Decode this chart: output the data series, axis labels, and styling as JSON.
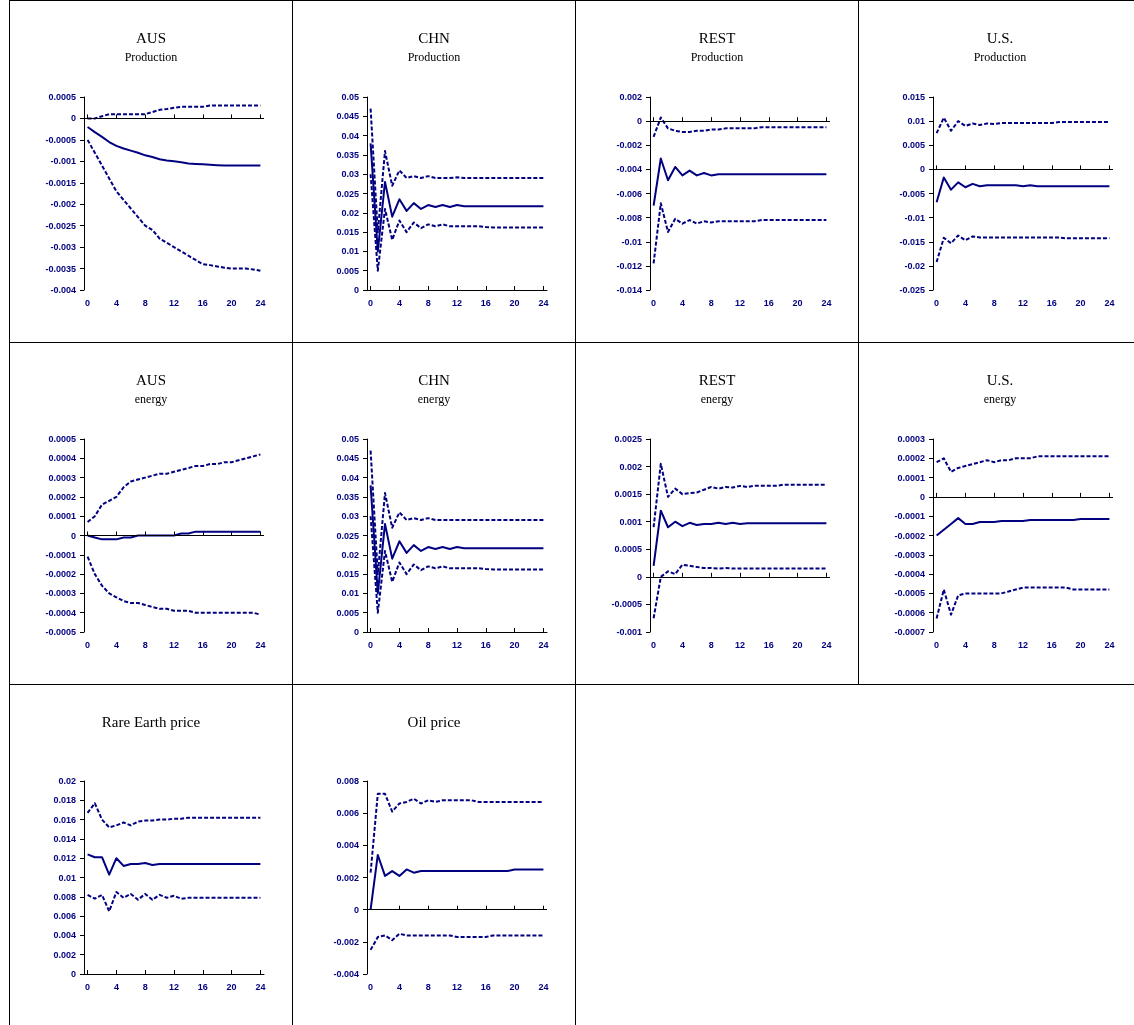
{
  "chart_data": [
    {
      "type": "line",
      "title": "AUS",
      "subtitle": "Production",
      "x": [
        0,
        1,
        2,
        3,
        4,
        5,
        6,
        7,
        8,
        9,
        10,
        11,
        12,
        13,
        14,
        15,
        16,
        17,
        18,
        19,
        20,
        21,
        22,
        23,
        24
      ],
      "xlim": [
        -0.5,
        24.5
      ],
      "xticks": [
        0,
        4,
        8,
        12,
        16,
        20,
        24
      ],
      "ylim": [
        -0.004,
        0.0005
      ],
      "ref_lines": [
        {
          "axis": "y",
          "value": 0
        }
      ],
      "yticks": [
        -0.004,
        -0.0035,
        -0.003,
        -0.0025,
        -0.002,
        -0.0015,
        -0.001,
        -0.0005,
        0,
        0.0005
      ],
      "marker": "none",
      "grid": false,
      "series": [
        {
          "color": "#000080",
          "line_style": "dashed",
          "values": [
            0,
            0,
            5e-05,
            0.0001,
            0.0001,
            0.0001,
            0.0001,
            0.0001,
            0.0001,
            0.00015,
            0.0002,
            0.00022,
            0.00025,
            0.00027,
            0.00027,
            0.00027,
            0.00027,
            0.0003,
            0.0003,
            0.0003,
            0.0003,
            0.0003,
            0.0003,
            0.0003,
            0.0003
          ]
        },
        {
          "color": "#000080",
          "line_style": "solid",
          "values": [
            -0.0002,
            -0.00032,
            -0.00043,
            -0.00055,
            -0.00064,
            -0.0007,
            -0.00075,
            -0.0008,
            -0.00086,
            -0.0009,
            -0.00095,
            -0.00098,
            -0.001,
            -0.00102,
            -0.00105,
            -0.00106,
            -0.00107,
            -0.00108,
            -0.00109,
            -0.0011,
            -0.0011,
            -0.0011,
            -0.0011,
            -0.0011,
            -0.0011
          ]
        },
        {
          "color": "#000080",
          "line_style": "dashed",
          "values": [
            -0.0005,
            -0.0008,
            -0.0011,
            -0.0014,
            -0.0017,
            -0.0019,
            -0.0021,
            -0.0023,
            -0.0025,
            -0.0026,
            -0.0028,
            -0.0029,
            -0.003,
            -0.0031,
            -0.0032,
            -0.0033,
            -0.0034,
            -0.00342,
            -0.00345,
            -0.00348,
            -0.0035,
            -0.0035,
            -0.0035,
            -0.00352,
            -0.00355
          ]
        }
      ]
    },
    {
      "type": "line",
      "title": "CHN",
      "subtitle": "Production",
      "x": [
        0,
        1,
        2,
        3,
        4,
        5,
        6,
        7,
        8,
        9,
        10,
        11,
        12,
        13,
        14,
        15,
        16,
        17,
        18,
        19,
        20,
        21,
        22,
        23,
        24
      ],
      "xlim": [
        -0.5,
        24.5
      ],
      "xticks": [
        0,
        4,
        8,
        12,
        16,
        20,
        24
      ],
      "ylim": [
        0,
        0.05
      ],
      "yticks": [
        0,
        0.005,
        0.01,
        0.015,
        0.02,
        0.025,
        0.03,
        0.035,
        0.04,
        0.045,
        0.05
      ],
      "marker": "none",
      "grid": false,
      "series": [
        {
          "color": "#000080",
          "line_style": "dashed",
          "values": [
            0.047,
            0.015,
            0.036,
            0.027,
            0.031,
            0.029,
            0.0295,
            0.029,
            0.0295,
            0.029,
            0.029,
            0.029,
            0.0292,
            0.029,
            0.029,
            0.029,
            0.029,
            0.029,
            0.029,
            0.029,
            0.029,
            0.029,
            0.029,
            0.029,
            0.029
          ]
        },
        {
          "color": "#000080",
          "line_style": "solid",
          "values": [
            0.038,
            0.01,
            0.028,
            0.019,
            0.0235,
            0.0205,
            0.0225,
            0.021,
            0.022,
            0.0215,
            0.022,
            0.0215,
            0.022,
            0.0217,
            0.0217,
            0.0217,
            0.0217,
            0.0217,
            0.0217,
            0.0217,
            0.0217,
            0.0217,
            0.0217,
            0.0217,
            0.0217
          ]
        },
        {
          "color": "#000080",
          "line_style": "dashed",
          "values": [
            0.03,
            0.005,
            0.021,
            0.013,
            0.018,
            0.015,
            0.0175,
            0.016,
            0.017,
            0.0165,
            0.017,
            0.0165,
            0.0165,
            0.0165,
            0.0165,
            0.0165,
            0.0163,
            0.0162,
            0.0162,
            0.0162,
            0.0162,
            0.0162,
            0.0162,
            0.0162,
            0.0162
          ]
        }
      ]
    },
    {
      "type": "line",
      "title": "REST",
      "subtitle": "Production",
      "x": [
        0,
        1,
        2,
        3,
        4,
        5,
        6,
        7,
        8,
        9,
        10,
        11,
        12,
        13,
        14,
        15,
        16,
        17,
        18,
        19,
        20,
        21,
        22,
        23,
        24
      ],
      "xlim": [
        -0.5,
        24.5
      ],
      "xticks": [
        0,
        4,
        8,
        12,
        16,
        20,
        24
      ],
      "ylim": [
        -0.014,
        0.002
      ],
      "ref_lines": [
        {
          "axis": "y",
          "value": 0
        }
      ],
      "yticks": [
        -0.014,
        -0.012,
        -0.01,
        -0.008,
        -0.006,
        -0.004,
        -0.002,
        0,
        0.002
      ],
      "marker": "none",
      "grid": false,
      "series": [
        {
          "color": "#000080",
          "line_style": "dashed",
          "values": [
            -0.0013,
            0.0003,
            -0.0006,
            -0.0008,
            -0.0009,
            -0.0009,
            -0.0008,
            -0.0008,
            -0.0007,
            -0.0007,
            -0.0006,
            -0.0006,
            -0.0006,
            -0.0006,
            -0.0006,
            -0.0005,
            -0.0005,
            -0.0005,
            -0.0005,
            -0.0005,
            -0.0005,
            -0.0005,
            -0.0005,
            -0.0005,
            -0.0005
          ]
        },
        {
          "color": "#000080",
          "line_style": "solid",
          "values": [
            -0.007,
            -0.0031,
            -0.0049,
            -0.0038,
            -0.0045,
            -0.0041,
            -0.0045,
            -0.0043,
            -0.0045,
            -0.0044,
            -0.0044,
            -0.0044,
            -0.0044,
            -0.0044,
            -0.0044,
            -0.0044,
            -0.0044,
            -0.0044,
            -0.0044,
            -0.0044,
            -0.0044,
            -0.0044,
            -0.0044,
            -0.0044,
            -0.0044
          ]
        },
        {
          "color": "#000080",
          "line_style": "dashed",
          "values": [
            -0.0118,
            -0.0068,
            -0.0092,
            -0.0081,
            -0.0085,
            -0.0082,
            -0.0085,
            -0.0083,
            -0.0084,
            -0.0083,
            -0.0083,
            -0.0083,
            -0.0083,
            -0.0083,
            -0.0083,
            -0.0082,
            -0.0082,
            -0.0082,
            -0.0082,
            -0.0082,
            -0.0082,
            -0.0082,
            -0.0082,
            -0.0082,
            -0.0082
          ]
        }
      ]
    },
    {
      "type": "line",
      "title": "U.S.",
      "subtitle": "Production",
      "x": [
        0,
        1,
        2,
        3,
        4,
        5,
        6,
        7,
        8,
        9,
        10,
        11,
        12,
        13,
        14,
        15,
        16,
        17,
        18,
        19,
        20,
        21,
        22,
        23,
        24
      ],
      "xlim": [
        -0.5,
        24.5
      ],
      "xticks": [
        0,
        4,
        8,
        12,
        16,
        20,
        24
      ],
      "ylim": [
        -0.025,
        0.015
      ],
      "ref_lines": [
        {
          "axis": "y",
          "value": 0
        }
      ],
      "yticks": [
        -0.025,
        -0.02,
        -0.015,
        -0.01,
        -0.005,
        0,
        0.005,
        0.01,
        0.015
      ],
      "marker": "none",
      "grid": false,
      "series": [
        {
          "color": "#000080",
          "line_style": "dashed",
          "values": [
            0.0075,
            0.0107,
            0.008,
            0.01,
            0.009,
            0.0095,
            0.0092,
            0.0095,
            0.0094,
            0.0096,
            0.0096,
            0.0096,
            0.0096,
            0.0096,
            0.0096,
            0.0096,
            0.0096,
            0.0098,
            0.0098,
            0.0098,
            0.0098,
            0.0098,
            0.0098,
            0.0098,
            0.0098
          ]
        },
        {
          "color": "#000080",
          "line_style": "solid",
          "values": [
            -0.0068,
            -0.0017,
            -0.0042,
            -0.0027,
            -0.0037,
            -0.003,
            -0.0035,
            -0.0033,
            -0.0033,
            -0.0033,
            -0.0033,
            -0.0033,
            -0.0035,
            -0.0033,
            -0.0035,
            -0.0035,
            -0.0035,
            -0.0035,
            -0.0035,
            -0.0035,
            -0.0035,
            -0.0035,
            -0.0035,
            -0.0035,
            -0.0035
          ]
        },
        {
          "color": "#000080",
          "line_style": "dashed",
          "values": [
            -0.0192,
            -0.0142,
            -0.0153,
            -0.0137,
            -0.0147,
            -0.0139,
            -0.0141,
            -0.0141,
            -0.0141,
            -0.0141,
            -0.0141,
            -0.0141,
            -0.0141,
            -0.0141,
            -0.0141,
            -0.0141,
            -0.0141,
            -0.0141,
            -0.0143,
            -0.0143,
            -0.0143,
            -0.0143,
            -0.0143,
            -0.0143,
            -0.0143
          ]
        }
      ]
    },
    {
      "type": "line",
      "title": "AUS",
      "subtitle": "energy",
      "x": [
        0,
        1,
        2,
        3,
        4,
        5,
        6,
        7,
        8,
        9,
        10,
        11,
        12,
        13,
        14,
        15,
        16,
        17,
        18,
        19,
        20,
        21,
        22,
        23,
        24
      ],
      "xlim": [
        -0.5,
        24.5
      ],
      "xticks": [
        0,
        4,
        8,
        12,
        16,
        20,
        24
      ],
      "ylim": [
        -0.0005,
        0.0005
      ],
      "ref_lines": [
        {
          "axis": "y",
          "value": 0
        }
      ],
      "yticks": [
        -0.0005,
        -0.0004,
        -0.0003,
        -0.0002,
        -0.0001,
        0,
        0.0001,
        0.0002,
        0.0003,
        0.0004,
        0.0005
      ],
      "marker": "none",
      "grid": false,
      "series": [
        {
          "color": "#000080",
          "line_style": "dashed",
          "values": [
            7e-05,
            0.0001,
            0.00016,
            0.00018,
            0.0002,
            0.00025,
            0.00028,
            0.00029,
            0.0003,
            0.00031,
            0.00032,
            0.00032,
            0.00033,
            0.00034,
            0.00035,
            0.00036,
            0.00036,
            0.00037,
            0.00037,
            0.00038,
            0.00038,
            0.00039,
            0.0004,
            0.00041,
            0.00042
          ]
        },
        {
          "color": "#000080",
          "line_style": "solid",
          "values": [
            0,
            -1e-05,
            -2e-05,
            -2e-05,
            -2e-05,
            -1e-05,
            -1e-05,
            0,
            0,
            0,
            0,
            0,
            0,
            1e-05,
            1e-05,
            2e-05,
            2e-05,
            2e-05,
            2e-05,
            2e-05,
            2e-05,
            2e-05,
            2e-05,
            2e-05,
            2e-05
          ]
        },
        {
          "color": "#000080",
          "line_style": "dashed",
          "values": [
            -0.00011,
            -0.0002,
            -0.00026,
            -0.0003,
            -0.00032,
            -0.00034,
            -0.00035,
            -0.00035,
            -0.00036,
            -0.00037,
            -0.00038,
            -0.00038,
            -0.00039,
            -0.00039,
            -0.00039,
            -0.0004,
            -0.0004,
            -0.0004,
            -0.0004,
            -0.0004,
            -0.0004,
            -0.0004,
            -0.0004,
            -0.0004,
            -0.00041
          ]
        }
      ]
    },
    {
      "type": "line",
      "title": "CHN",
      "subtitle": "energy",
      "x": [
        0,
        1,
        2,
        3,
        4,
        5,
        6,
        7,
        8,
        9,
        10,
        11,
        12,
        13,
        14,
        15,
        16,
        17,
        18,
        19,
        20,
        21,
        22,
        23,
        24
      ],
      "xlim": [
        -0.5,
        24.5
      ],
      "xticks": [
        0,
        4,
        8,
        12,
        16,
        20,
        24
      ],
      "ylim": [
        0,
        0.05
      ],
      "yticks": [
        0,
        0.005,
        0.01,
        0.015,
        0.02,
        0.025,
        0.03,
        0.035,
        0.04,
        0.045,
        0.05
      ],
      "marker": "none",
      "grid": false,
      "series": [
        {
          "color": "#000080",
          "line_style": "dashed",
          "values": [
            0.047,
            0.015,
            0.036,
            0.027,
            0.031,
            0.029,
            0.0295,
            0.029,
            0.0295,
            0.029,
            0.029,
            0.029,
            0.029,
            0.029,
            0.029,
            0.029,
            0.029,
            0.029,
            0.029,
            0.029,
            0.029,
            0.029,
            0.029,
            0.029,
            0.029
          ]
        },
        {
          "color": "#000080",
          "line_style": "solid",
          "values": [
            0.038,
            0.01,
            0.028,
            0.019,
            0.0235,
            0.0205,
            0.0225,
            0.021,
            0.022,
            0.0215,
            0.022,
            0.0215,
            0.022,
            0.0217,
            0.0217,
            0.0217,
            0.0217,
            0.0217,
            0.0217,
            0.0217,
            0.0217,
            0.0217,
            0.0217,
            0.0217,
            0.0217
          ]
        },
        {
          "color": "#000080",
          "line_style": "dashed",
          "values": [
            0.03,
            0.005,
            0.021,
            0.013,
            0.018,
            0.015,
            0.0175,
            0.016,
            0.017,
            0.0165,
            0.017,
            0.0165,
            0.0165,
            0.0165,
            0.0165,
            0.0165,
            0.0163,
            0.0162,
            0.0162,
            0.0162,
            0.0162,
            0.0162,
            0.0162,
            0.0162,
            0.0162
          ]
        }
      ]
    },
    {
      "type": "line",
      "title": "REST",
      "subtitle": "energy",
      "x": [
        0,
        1,
        2,
        3,
        4,
        5,
        6,
        7,
        8,
        9,
        10,
        11,
        12,
        13,
        14,
        15,
        16,
        17,
        18,
        19,
        20,
        21,
        22,
        23,
        24
      ],
      "xlim": [
        -0.5,
        24.5
      ],
      "xticks": [
        0,
        4,
        8,
        12,
        16,
        20,
        24
      ],
      "ylim": [
        -0.001,
        0.0025
      ],
      "ref_lines": [
        {
          "axis": "y",
          "value": 0
        }
      ],
      "yticks": [
        -0.001,
        -0.0005,
        0,
        0.0005,
        0.001,
        0.0015,
        0.002,
        0.0025
      ],
      "marker": "none",
      "grid": false,
      "series": [
        {
          "color": "#000080",
          "line_style": "dashed",
          "values": [
            0.0009,
            0.00205,
            0.00145,
            0.0016,
            0.0015,
            0.00152,
            0.00153,
            0.00158,
            0.00163,
            0.0016,
            0.00163,
            0.00162,
            0.00165,
            0.00163,
            0.00165,
            0.00165,
            0.00165,
            0.00165,
            0.00167,
            0.00167,
            0.00167,
            0.00167,
            0.00167,
            0.00167,
            0.00167
          ]
        },
        {
          "color": "#000080",
          "line_style": "solid",
          "values": [
            0.0002,
            0.0012,
            0.0009,
            0.001,
            0.00092,
            0.00098,
            0.00094,
            0.00096,
            0.00096,
            0.00098,
            0.00096,
            0.00098,
            0.00096,
            0.00097,
            0.00097,
            0.00097,
            0.00097,
            0.00097,
            0.00097,
            0.00097,
            0.00097,
            0.00097,
            0.00097,
            0.00097,
            0.00097
          ]
        },
        {
          "color": "#000080",
          "line_style": "dashed",
          "values": [
            -0.00075,
            0,
            0.0001,
            5e-05,
            0.00022,
            0.0002,
            0.00018,
            0.00016,
            0.00016,
            0.00015,
            0.00016,
            0.00015,
            0.00015,
            0.00015,
            0.00015,
            0.00015,
            0.00015,
            0.00015,
            0.00015,
            0.00015,
            0.00015,
            0.00015,
            0.00015,
            0.00015,
            0.00015
          ]
        }
      ]
    },
    {
      "type": "line",
      "title": "U.S.",
      "subtitle": "energy",
      "x": [
        0,
        1,
        2,
        3,
        4,
        5,
        6,
        7,
        8,
        9,
        10,
        11,
        12,
        13,
        14,
        15,
        16,
        17,
        18,
        19,
        20,
        21,
        22,
        23,
        24
      ],
      "xlim": [
        -0.5,
        24.5
      ],
      "xticks": [
        0,
        4,
        8,
        12,
        16,
        20,
        24
      ],
      "ylim": [
        -0.0007,
        0.0003
      ],
      "ref_lines": [
        {
          "axis": "y",
          "value": 0
        }
      ],
      "yticks": [
        -0.0007,
        -0.0006,
        -0.0005,
        -0.0004,
        -0.0003,
        -0.0002,
        -0.0001,
        0,
        0.0001,
        0.0002,
        0.0003
      ],
      "marker": "none",
      "grid": false,
      "series": [
        {
          "color": "#000080",
          "line_style": "dashed",
          "values": [
            0.00018,
            0.0002,
            0.00013,
            0.00015,
            0.00016,
            0.00017,
            0.00018,
            0.00019,
            0.00018,
            0.00019,
            0.00019,
            0.0002,
            0.0002,
            0.0002,
            0.00021,
            0.00021,
            0.00021,
            0.00021,
            0.00021,
            0.00021,
            0.00021,
            0.00021,
            0.00021,
            0.00021,
            0.00021
          ]
        },
        {
          "color": "#000080",
          "line_style": "solid",
          "values": [
            -0.0002,
            -0.00017,
            -0.00014,
            -0.00011,
            -0.00014,
            -0.00014,
            -0.00013,
            -0.00013,
            -0.00013,
            -0.000125,
            -0.000125,
            -0.000125,
            -0.000125,
            -0.00012,
            -0.00012,
            -0.00012,
            -0.00012,
            -0.00012,
            -0.00012,
            -0.00012,
            -0.000115,
            -0.000115,
            -0.000115,
            -0.000115,
            -0.000115
          ]
        },
        {
          "color": "#000080",
          "line_style": "dashed",
          "values": [
            -0.00063,
            -0.00048,
            -0.00061,
            -0.00051,
            -0.0005,
            -0.0005,
            -0.0005,
            -0.0005,
            -0.0005,
            -0.0005,
            -0.00049,
            -0.00048,
            -0.00047,
            -0.00047,
            -0.00047,
            -0.00047,
            -0.00047,
            -0.00047,
            -0.00047,
            -0.00048,
            -0.00048,
            -0.00048,
            -0.00048,
            -0.00048,
            -0.00048
          ]
        }
      ]
    },
    {
      "type": "line",
      "title": "Rare Earth price",
      "x": [
        0,
        1,
        2,
        3,
        4,
        5,
        6,
        7,
        8,
        9,
        10,
        11,
        12,
        13,
        14,
        15,
        16,
        17,
        18,
        19,
        20,
        21,
        22,
        23,
        24
      ],
      "xlim": [
        -0.5,
        24.5
      ],
      "xticks": [
        0,
        4,
        8,
        12,
        16,
        20,
        24
      ],
      "ylim": [
        0,
        0.02
      ],
      "yticks": [
        0,
        0.002,
        0.004,
        0.006,
        0.008,
        0.01,
        0.012,
        0.014,
        0.016,
        0.018,
        0.02
      ],
      "marker": "none",
      "grid": false,
      "series": [
        {
          "color": "#000080",
          "line_style": "dashed",
          "values": [
            0.0167,
            0.0177,
            0.016,
            0.0152,
            0.0154,
            0.0157,
            0.0154,
            0.0158,
            0.0159,
            0.0159,
            0.016,
            0.016,
            0.0161,
            0.0161,
            0.0162,
            0.0162,
            0.0162,
            0.0162,
            0.0162,
            0.0162,
            0.0162,
            0.0162,
            0.0162,
            0.0162,
            0.0162
          ]
        },
        {
          "color": "#000080",
          "line_style": "solid",
          "values": [
            0.0124,
            0.0121,
            0.0121,
            0.0103,
            0.012,
            0.0112,
            0.0114,
            0.0114,
            0.0115,
            0.0113,
            0.0114,
            0.0114,
            0.0114,
            0.0114,
            0.0114,
            0.0114,
            0.0114,
            0.0114,
            0.0114,
            0.0114,
            0.0114,
            0.0114,
            0.0114,
            0.0114,
            0.0114
          ]
        },
        {
          "color": "#000080",
          "line_style": "dashed",
          "values": [
            0.0082,
            0.0078,
            0.0082,
            0.0065,
            0.0085,
            0.0079,
            0.0083,
            0.0077,
            0.0083,
            0.0077,
            0.0082,
            0.0079,
            0.0081,
            0.0078,
            0.0079,
            0.0079,
            0.0079,
            0.0079,
            0.0079,
            0.0079,
            0.0079,
            0.0079,
            0.0079,
            0.0079,
            0.0079
          ]
        }
      ]
    },
    {
      "type": "line",
      "title": "Oil price",
      "x": [
        0,
        1,
        2,
        3,
        4,
        5,
        6,
        7,
        8,
        9,
        10,
        11,
        12,
        13,
        14,
        15,
        16,
        17,
        18,
        19,
        20,
        21,
        22,
        23,
        24
      ],
      "xlim": [
        -0.5,
        24.5
      ],
      "xticks": [
        0,
        4,
        8,
        12,
        16,
        20,
        24
      ],
      "ylim": [
        -0.004,
        0.008
      ],
      "ref_lines": [
        {
          "axis": "y",
          "value": 0
        }
      ],
      "yticks": [
        -0.004,
        -0.002,
        0,
        0.002,
        0.004,
        0.006,
        0.008
      ],
      "marker": "none",
      "grid": false,
      "series": [
        {
          "color": "#000080",
          "line_style": "dashed",
          "values": [
            0.0023,
            0.0072,
            0.0072,
            0.0061,
            0.0066,
            0.0067,
            0.0069,
            0.0066,
            0.0068,
            0.0067,
            0.0068,
            0.0068,
            0.0068,
            0.0068,
            0.0068,
            0.0067,
            0.0067,
            0.0067,
            0.0067,
            0.0067,
            0.0067,
            0.0067,
            0.0067,
            0.0067,
            0.0067
          ]
        },
        {
          "color": "#000080",
          "line_style": "solid",
          "values": [
            0,
            0.0034,
            0.0021,
            0.0024,
            0.0021,
            0.0025,
            0.0023,
            0.0024,
            0.0024,
            0.0024,
            0.0024,
            0.0024,
            0.0024,
            0.0024,
            0.0024,
            0.0024,
            0.0024,
            0.0024,
            0.0024,
            0.0024,
            0.0025,
            0.0025,
            0.0025,
            0.0025,
            0.0025
          ]
        },
        {
          "color": "#000080",
          "line_style": "dashed",
          "values": [
            -0.0025,
            -0.0017,
            -0.0016,
            -0.0019,
            -0.0015,
            -0.0016,
            -0.0016,
            -0.0016,
            -0.0016,
            -0.0016,
            -0.0016,
            -0.0016,
            -0.0017,
            -0.0017,
            -0.0017,
            -0.0017,
            -0.0017,
            -0.0016,
            -0.0016,
            -0.0016,
            -0.0016,
            -0.0016,
            -0.0016,
            -0.0016,
            -0.0016
          ]
        }
      ]
    }
  ]
}
